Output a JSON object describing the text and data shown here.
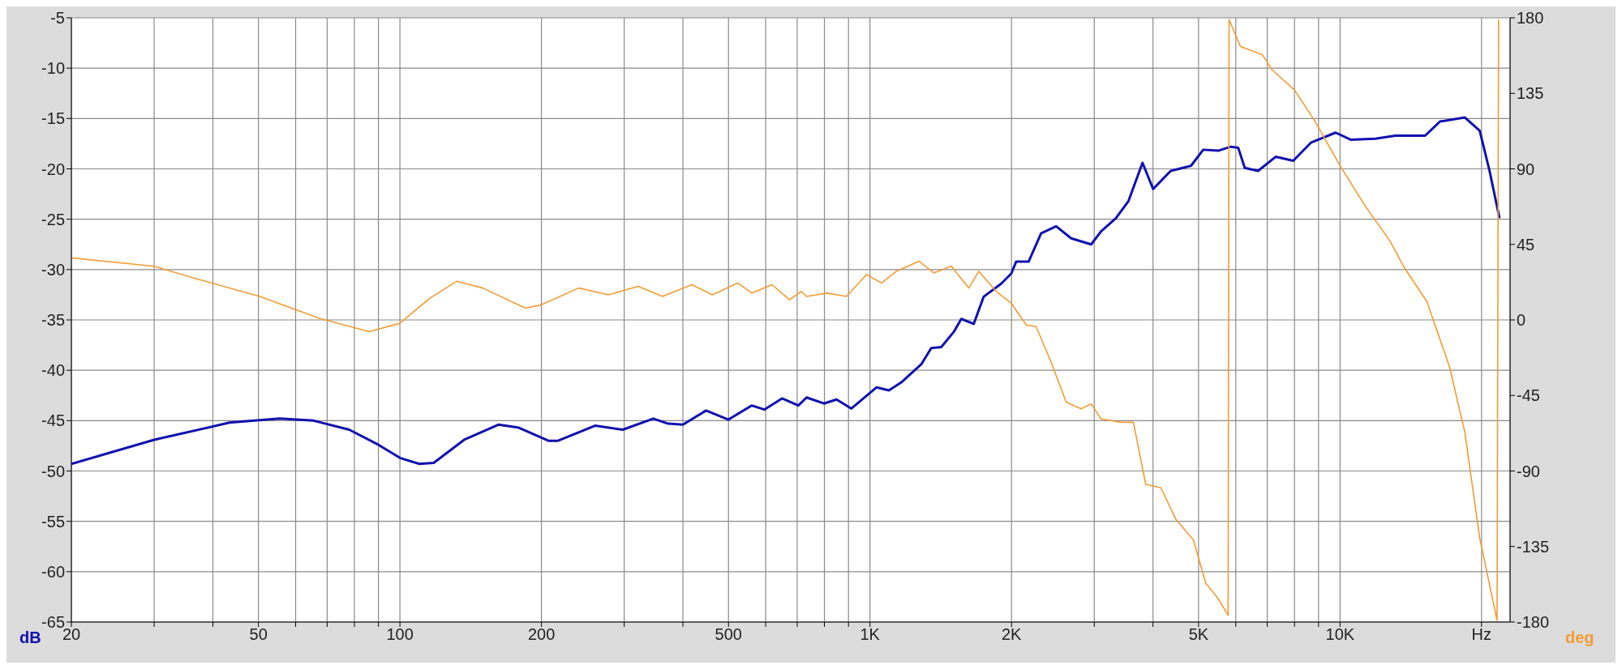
{
  "chart_data": {
    "type": "line",
    "ylabel": "dB",
    "y2label": "deg",
    "log": "x",
    "grid": true,
    "xlim": [
      20,
      23000
    ],
    "xticks": [
      20,
      {
        "value": 30,
        "label": null
      },
      {
        "value": 40,
        "label": null
      },
      50,
      {
        "value": 60,
        "label": null
      },
      {
        "value": 70,
        "label": null
      },
      {
        "value": 80,
        "label": null
      },
      {
        "value": 90,
        "label": null
      },
      100,
      200,
      {
        "value": 300,
        "label": null
      },
      {
        "value": 400,
        "label": null
      },
      500,
      {
        "value": 600,
        "label": null
      },
      {
        "value": 700,
        "label": null
      },
      {
        "value": 800,
        "label": null
      },
      {
        "value": 900,
        "label": null
      },
      {
        "value": 1000,
        "label": "1K"
      },
      {
        "value": 2000,
        "label": "2K"
      },
      {
        "value": 3000,
        "label": null
      },
      {
        "value": 4000,
        "label": null
      },
      {
        "value": 5000,
        "label": "5K"
      },
      {
        "value": 6000,
        "label": null
      },
      {
        "value": 7000,
        "label": null
      },
      {
        "value": 8000,
        "label": null
      },
      {
        "value": 9000,
        "label": null
      },
      {
        "value": 10000,
        "label": "10K"
      },
      {
        "value": 20000,
        "label": "Hz"
      }
    ],
    "ylim": [
      -65,
      -5
    ],
    "yticks": [
      -65,
      -60,
      -55,
      -50,
      -45,
      -40,
      -35,
      -30,
      -25,
      -20,
      -15,
      -10,
      -5
    ],
    "y2lim": [
      -180,
      180
    ],
    "y2ticks": [
      -180,
      -135,
      -90,
      -45,
      0,
      45,
      90,
      135,
      180
    ],
    "series": [
      {
        "color": "#1010b0",
        "x": [
          20,
          30,
          43.4,
          55.5,
          65.5,
          78,
          90,
          100,
          110,
          118,
          137,
          162,
          179,
          207,
          217,
          260,
          298,
          346,
          372,
          400,
          448,
          500,
          560,
          596,
          650,
          704,
          733,
          798,
          849,
          913,
          1032,
          1097,
          1166,
          1286,
          1350,
          1418,
          1507,
          1564,
          1662,
          1745,
          1902,
          1998,
          2047,
          2176,
          2312,
          2489,
          2679,
          2955,
          3102,
          3336,
          3547,
          3800,
          4003,
          4363,
          4818,
          5116,
          5505,
          5855,
          6072,
          6270,
          6693,
          7295,
          7952,
          8667,
          9786,
          10530,
          11890,
          13110,
          15170,
          16310,
          18430,
          19820,
          20800,
          21840
        ],
        "values": [
          -49.3,
          -46.9,
          -45.2,
          -44.8,
          -45.0,
          -45.9,
          -47.4,
          -48.7,
          -49.3,
          -49.2,
          -46.9,
          -45.4,
          -45.7,
          -47.0,
          -47.0,
          -45.5,
          -45.9,
          -44.8,
          -45.3,
          -45.4,
          -44.0,
          -44.9,
          -43.5,
          -43.9,
          -42.8,
          -43.5,
          -42.7,
          -43.3,
          -42.9,
          -43.8,
          -41.7,
          -42.0,
          -41.2,
          -39.4,
          -37.8,
          -37.7,
          -36.2,
          -34.9,
          -35.4,
          -32.7,
          -31.4,
          -30.4,
          -29.2,
          -29.2,
          -26.4,
          -25.7,
          -26.9,
          -27.5,
          -26.2,
          -24.9,
          -23.2,
          -19.4,
          -22.0,
          -20.2,
          -19.7,
          -18.1,
          -18.2,
          -17.8,
          -17.9,
          -19.9,
          -20.2,
          -18.8,
          -19.2,
          -17.4,
          -16.4,
          -17.1,
          -17.0,
          -16.7,
          -16.7,
          -15.3,
          -14.9,
          -16.2,
          -20.2,
          -24.9
        ]
      },
      {
        "color": "#f39c34",
        "axis": "y2",
        "x": [
          20,
          30,
          36.4,
          50.3,
          67.4,
          86,
          100,
          115.8,
          132,
          150,
          185,
          200,
          240,
          278,
          321,
          362,
          418,
          462,
          523,
          561,
          619,
          674,
          714,
          733,
          809,
          891,
          983,
          1058,
          1138,
          1271,
          1367,
          1490,
          1623,
          1704,
          1856,
          1998,
          2150,
          2256,
          2427,
          2614,
          2813,
          2955,
          3102,
          3421,
          3633,
          3861,
          4158,
          4478,
          4875,
          5181,
          5505,
          5779,
          5807,
          6134,
          6834,
          7172,
          8000,
          8814,
          9998,
          11300,
          12770,
          13710,
          15300,
          17100,
          18430,
          19820,
          21580,
          21740
        ],
        "values": [
          37,
          32,
          25,
          14,
          1,
          -7,
          -2,
          13,
          23,
          19,
          7,
          9,
          19,
          15,
          20,
          14,
          21,
          15,
          22,
          16,
          21,
          12,
          17,
          14,
          16,
          14,
          27,
          22,
          29,
          35,
          28,
          32,
          19,
          29,
          17,
          10,
          -3,
          -4,
          -25,
          -49,
          -53,
          -50,
          -59,
          -61,
          -61,
          -98,
          -100,
          -119,
          -131,
          -157,
          -166,
          -176,
          179,
          163,
          158,
          149,
          137,
          119,
          92,
          68,
          47,
          31,
          11,
          -28,
          -67,
          -130,
          -179,
          179
        ]
      }
    ]
  }
}
